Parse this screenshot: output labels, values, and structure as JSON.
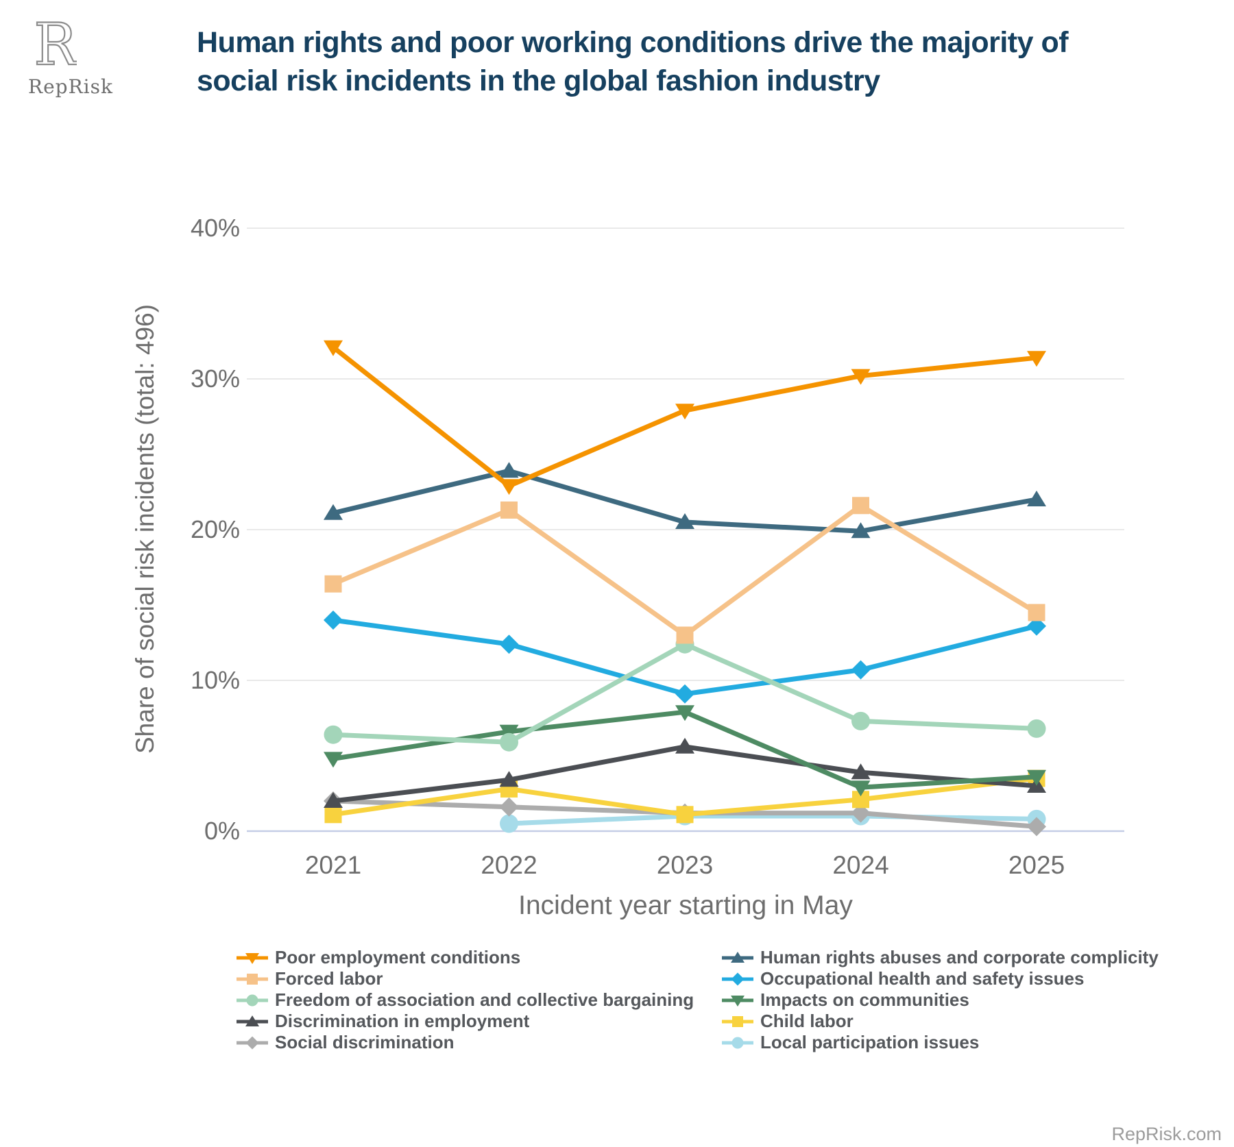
{
  "logo": {
    "text": "RepRisk",
    "mark": "reprisk-r-monogram"
  },
  "header": {
    "title_lines": [
      "Human rights and poor working conditions drive the majority of",
      "social risk incidents in the global fashion industry"
    ],
    "title_color": "#16405F"
  },
  "footer": {
    "text": "RepRisk.com"
  },
  "chart_data": {
    "type": "line",
    "x_categories": [
      "2021",
      "2022",
      "2023",
      "2024",
      "2025"
    ],
    "xlabel": "Incident year starting in May",
    "ylabel": "Share of social risk incidents (total: 496)",
    "yticks": [
      {
        "label": "0%",
        "value": 0
      },
      {
        "label": "10%",
        "value": 10
      },
      {
        "label": "20%",
        "value": 20
      },
      {
        "label": "30%",
        "value": 30
      },
      {
        "label": "40%",
        "value": 40
      }
    ],
    "ylim": [
      0,
      42
    ],
    "grid": true,
    "grid_color": "#E9E9E9",
    "axis_line_color": "#C5CDE6",
    "legend_position": "bottom, two columns",
    "series": [
      {
        "id": "poor-employment-conditions",
        "label": "Poor employment conditions",
        "color": "#F59300",
        "marker": "triangle-down",
        "legend_column": 0,
        "draw_order": 10,
        "values": [
          32.1,
          22.9,
          27.9,
          30.2,
          31.4
        ]
      },
      {
        "id": "forced-labor",
        "label": "Forced labor",
        "color": "#F6C289",
        "marker": "square",
        "legend_column": 0,
        "draw_order": 9,
        "values": [
          16.4,
          21.3,
          13.0,
          21.6,
          14.5
        ]
      },
      {
        "id": "freedom-of-association",
        "label": "Freedom of association and collective bargaining",
        "color": "#A3D5B9",
        "marker": "circle",
        "legend_column": 0,
        "draw_order": 7,
        "values": [
          6.4,
          5.9,
          12.4,
          7.3,
          6.8
        ]
      },
      {
        "id": "discrimination-in-employment",
        "label": "Discrimination in employment",
        "color": "#4B4E53",
        "marker": "triangle-up",
        "legend_column": 0,
        "draw_order": 4,
        "values": [
          2.0,
          3.4,
          5.6,
          3.9,
          3.0
        ]
      },
      {
        "id": "social-discrimination",
        "label": "Social discrimination",
        "color": "#ACACAC",
        "marker": "diamond",
        "legend_column": 0,
        "draw_order": 2,
        "values": [
          2.0,
          1.6,
          1.2,
          1.2,
          0.3
        ]
      },
      {
        "id": "human-rights-abuses",
        "label": "Human rights abuses and corporate complicity",
        "color": "#3E6A80",
        "marker": "triangle-up",
        "legend_column": 1,
        "draw_order": 8,
        "values": [
          21.1,
          23.9,
          20.5,
          19.9,
          22.0
        ]
      },
      {
        "id": "occupational-health-safety",
        "label": "Occupational health and safety issues",
        "color": "#22ABE0",
        "marker": "diamond",
        "legend_column": 1,
        "draw_order": 6,
        "values": [
          14.0,
          12.4,
          9.1,
          10.7,
          13.6
        ]
      },
      {
        "id": "impacts-on-communities",
        "label": "Impacts on communities",
        "color": "#4E8B63",
        "marker": "triangle-down",
        "legend_column": 1,
        "draw_order": 5,
        "values": [
          4.8,
          6.6,
          7.9,
          2.9,
          3.6
        ]
      },
      {
        "id": "child-labor",
        "label": "Child labor",
        "color": "#F8D23E",
        "marker": "square",
        "legend_column": 1,
        "draw_order": 3,
        "values": [
          1.1,
          2.8,
          1.1,
          2.1,
          3.5
        ]
      },
      {
        "id": "local-participation-issues",
        "label": "Local participation issues",
        "color": "#A6DBE9",
        "marker": "circle",
        "legend_column": 1,
        "draw_order": 1,
        "values": [
          null,
          0.5,
          1.0,
          1.0,
          0.8
        ]
      }
    ]
  }
}
